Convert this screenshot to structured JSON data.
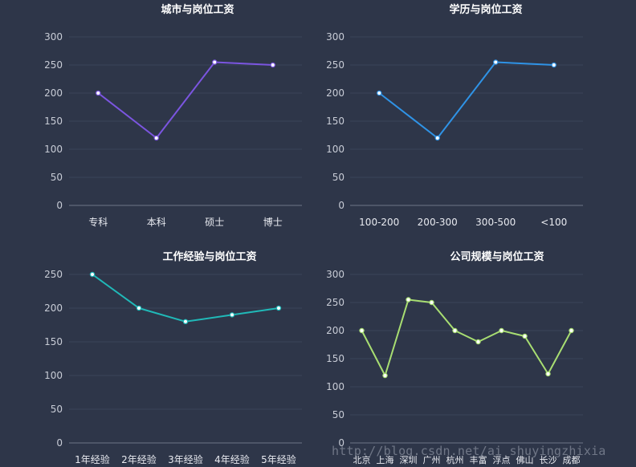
{
  "colors": {
    "background": "#2e3649",
    "grid": "#3b4459",
    "axis_line": "#6d7587",
    "tick_text": "#c8ccd6",
    "category_text": "#e8eaf0",
    "title_text": "#ffffff"
  },
  "watermark": "http://blog.csdn.net/ai_shuyingzhixia",
  "chart_data": [
    {
      "type": "line",
      "title": "城市与岗位工资",
      "categories": [
        "专科",
        "本科",
        "硕士",
        "博士"
      ],
      "values": [
        200,
        120,
        255,
        250
      ],
      "ylim": [
        0,
        300
      ],
      "yticks": [
        0,
        50,
        100,
        150,
        200,
        250,
        300
      ],
      "color": "#7b55e0",
      "xlabel": "",
      "ylabel": ""
    },
    {
      "type": "line",
      "title": "学历与岗位工资",
      "categories": [
        "100-200",
        "200-300",
        "300-500",
        "<100"
      ],
      "values": [
        200,
        120,
        255,
        250
      ],
      "ylim": [
        0,
        300
      ],
      "yticks": [
        0,
        50,
        100,
        150,
        200,
        250,
        300
      ],
      "color": "#2f93e6",
      "xlabel": "",
      "ylabel": ""
    },
    {
      "type": "line",
      "title": "工作经验与岗位工资",
      "categories": [
        "1年经验",
        "2年经验",
        "3年经验",
        "4年经验",
        "5年经验"
      ],
      "values": [
        250,
        200,
        180,
        190,
        200
      ],
      "ylim": [
        0,
        250
      ],
      "yticks": [
        0,
        50,
        100,
        150,
        200,
        250
      ],
      "color": "#20b9b8",
      "xlabel": "",
      "ylabel": ""
    },
    {
      "type": "line",
      "title": "公司规模与岗位工资",
      "categories": [
        "北京",
        "上海",
        "深圳",
        "广州",
        "杭州",
        "丰富",
        "浮点",
        "佛山",
        "长沙",
        "成都"
      ],
      "values": [
        200,
        120,
        255,
        250,
        200,
        180,
        200,
        190,
        123,
        200
      ],
      "ylim": [
        0,
        300
      ],
      "yticks": [
        0,
        50,
        100,
        150,
        200,
        250,
        300
      ],
      "color": "#a8de72",
      "xlabel": "",
      "ylabel": ""
    }
  ]
}
